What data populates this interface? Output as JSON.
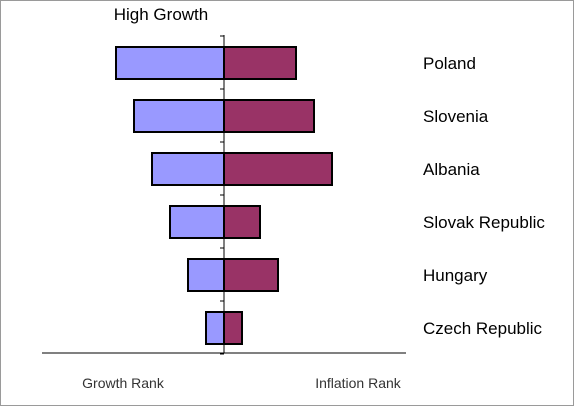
{
  "chart_data": {
    "type": "bar",
    "orientation": "horizontal-diverging",
    "top_label": "High Growth",
    "left_caption": "Growth Rank",
    "right_caption": "Inflation Rank",
    "categories": [
      "Poland",
      "Slovenia",
      "Albania",
      "Slovak Republic",
      "Hungary",
      "Czech Republic"
    ],
    "series": [
      {
        "name": "Growth Rank",
        "side": "left",
        "color": "#9999ff",
        "values": [
          6,
          5,
          4,
          3,
          2,
          1
        ]
      },
      {
        "name": "Inflation Rank",
        "side": "right",
        "color": "#993366",
        "values": [
          4,
          5,
          6,
          2,
          3,
          1
        ]
      }
    ],
    "xlim": [
      -10,
      10
    ],
    "grid": false,
    "legend": "none"
  }
}
